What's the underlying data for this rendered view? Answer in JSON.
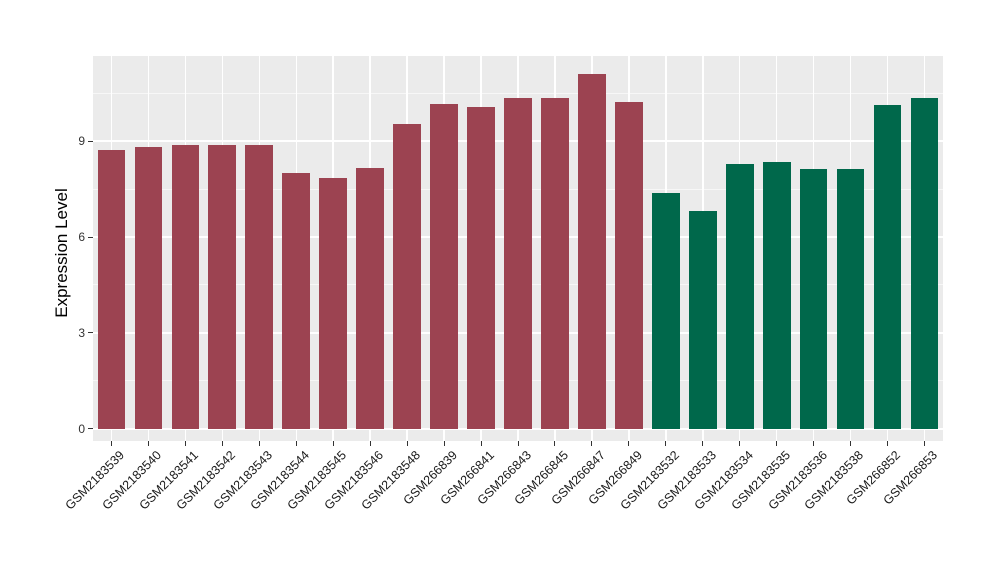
{
  "chart_data": {
    "type": "bar",
    "title": "",
    "ylabel": "Expression Level",
    "xlabel": "",
    "categories": [
      "GSM2183539",
      "GSM2183540",
      "GSM2183541",
      "GSM2183542",
      "GSM2183543",
      "GSM2183544",
      "GSM2183545",
      "GSM2183546",
      "GSM2183548",
      "GSM266839",
      "GSM266841",
      "GSM266843",
      "GSM266845",
      "GSM266847",
      "GSM266849",
      "GSM2183532",
      "GSM2183533",
      "GSM2183534",
      "GSM2183535",
      "GSM2183536",
      "GSM2183538",
      "GSM266852",
      "GSM266853"
    ],
    "values": [
      8.71,
      8.83,
      8.88,
      8.88,
      8.87,
      8.0,
      7.85,
      8.17,
      9.54,
      10.17,
      10.08,
      10.34,
      10.36,
      11.11,
      10.24,
      7.39,
      6.8,
      8.28,
      8.36,
      8.12,
      8.13,
      10.12,
      10.37
    ],
    "group_of_bar": [
      "A",
      "A",
      "A",
      "A",
      "A",
      "A",
      "A",
      "A",
      "A",
      "A",
      "A",
      "A",
      "A",
      "A",
      "A",
      "B",
      "B",
      "B",
      "B",
      "B",
      "B",
      "B",
      "B"
    ],
    "group_colors": {
      "A": "#9C4351",
      "B": "#00684B"
    },
    "yticks": [
      0,
      3,
      6,
      9
    ],
    "minor_ticks": [
      1.5,
      4.5,
      7.5,
      10.5
    ],
    "ylim": [
      -0.39,
      11.67
    ],
    "bar_width_fraction": 0.75,
    "panel_background": "#EBEBEB",
    "major_gridline_color": "#FFFFFF",
    "minor_gridline_opacity": 0.6,
    "tick_color": "#333333",
    "axis_text_color": "#1a1a1a",
    "legend": "none",
    "grid": "on"
  }
}
